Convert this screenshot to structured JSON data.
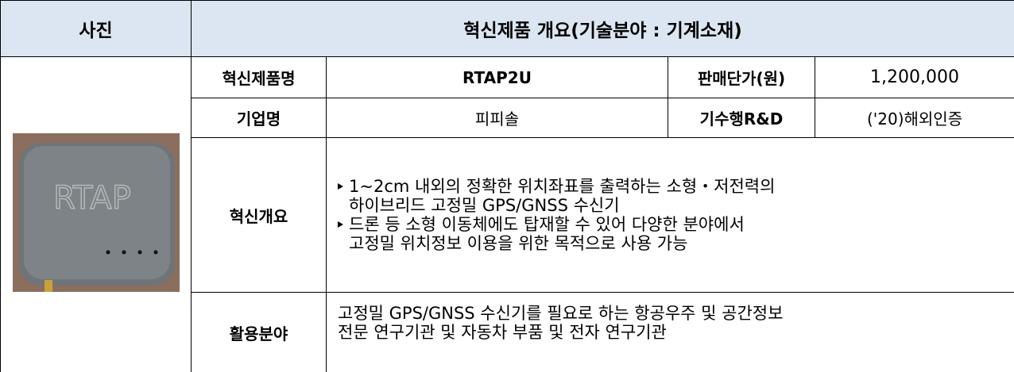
{
  "header": {
    "photo": "사진",
    "title": "혁신제품 개요(기술분야 : 기계소재)"
  },
  "photo_text": "RTAP",
  "rows": [
    {
      "label": "혁신제품명",
      "value": "RTAP2U",
      "label2": "판매단가(원)",
      "value2": "1,200,000"
    },
    {
      "label": "기업명",
      "value": "피피솔",
      "label2": "기수행R&D",
      "value2": "('20)해외인증"
    }
  ],
  "overview": {
    "label": "혁신개요",
    "bullets": [
      [
        "1~2cm 내외의 정확한 위치좌표를 출력하는 소형・저전력의",
        "하이브리드 고정밀 GPS/GNSS 수신기"
      ],
      [
        "드론 등 소형 이동체에도 탑재할 수 있어 다양한 분야에서",
        "고정밀 위치정보 이용을 위한 목적으로 사용 가능"
      ]
    ]
  },
  "usage": {
    "label": "활용분야",
    "lines": [
      "고정밀 GPS/GNSS 수신기를 필요로 하는 항공우주 및 공간정보",
      "전문 연구기관 및 자동차 부품 및 전자 연구기관"
    ]
  }
}
